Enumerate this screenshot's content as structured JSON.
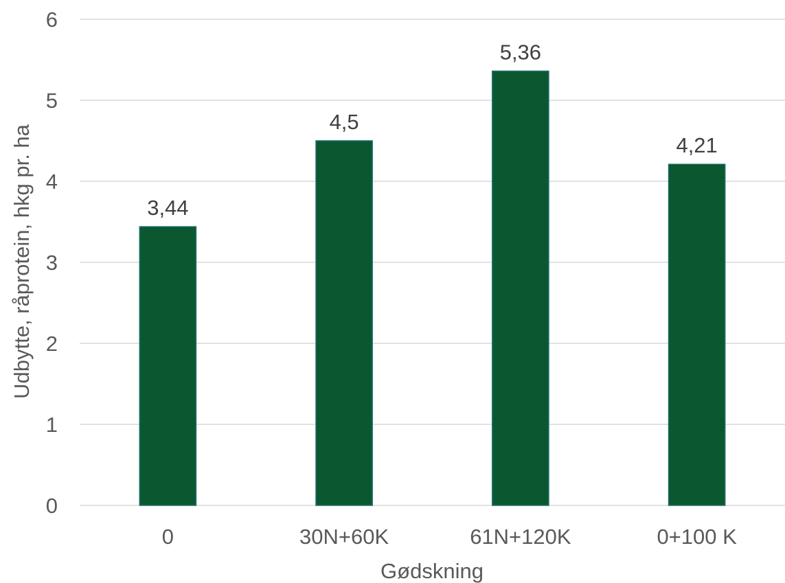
{
  "chart_data": {
    "type": "bar",
    "categories": [
      "0",
      "30N+60K",
      "61N+120K",
      "0+100 K"
    ],
    "values": [
      3.44,
      4.5,
      5.36,
      4.21
    ],
    "data_labels": [
      "3,44",
      "4,5",
      "5,36",
      "4,21"
    ],
    "title": "",
    "xlabel": "Gødskning",
    "ylabel": "Udbytte, råprotein, hkg pr. ha",
    "ylim": [
      0,
      6
    ],
    "yticks": [
      0,
      1,
      2,
      3,
      4,
      5,
      6
    ],
    "grid": true,
    "legend": "none",
    "colors": {
      "bar_fill": "#0b5730",
      "bar_stroke": "#1f6f6f",
      "grid": "#d9d9d9",
      "text": "#595959"
    }
  }
}
